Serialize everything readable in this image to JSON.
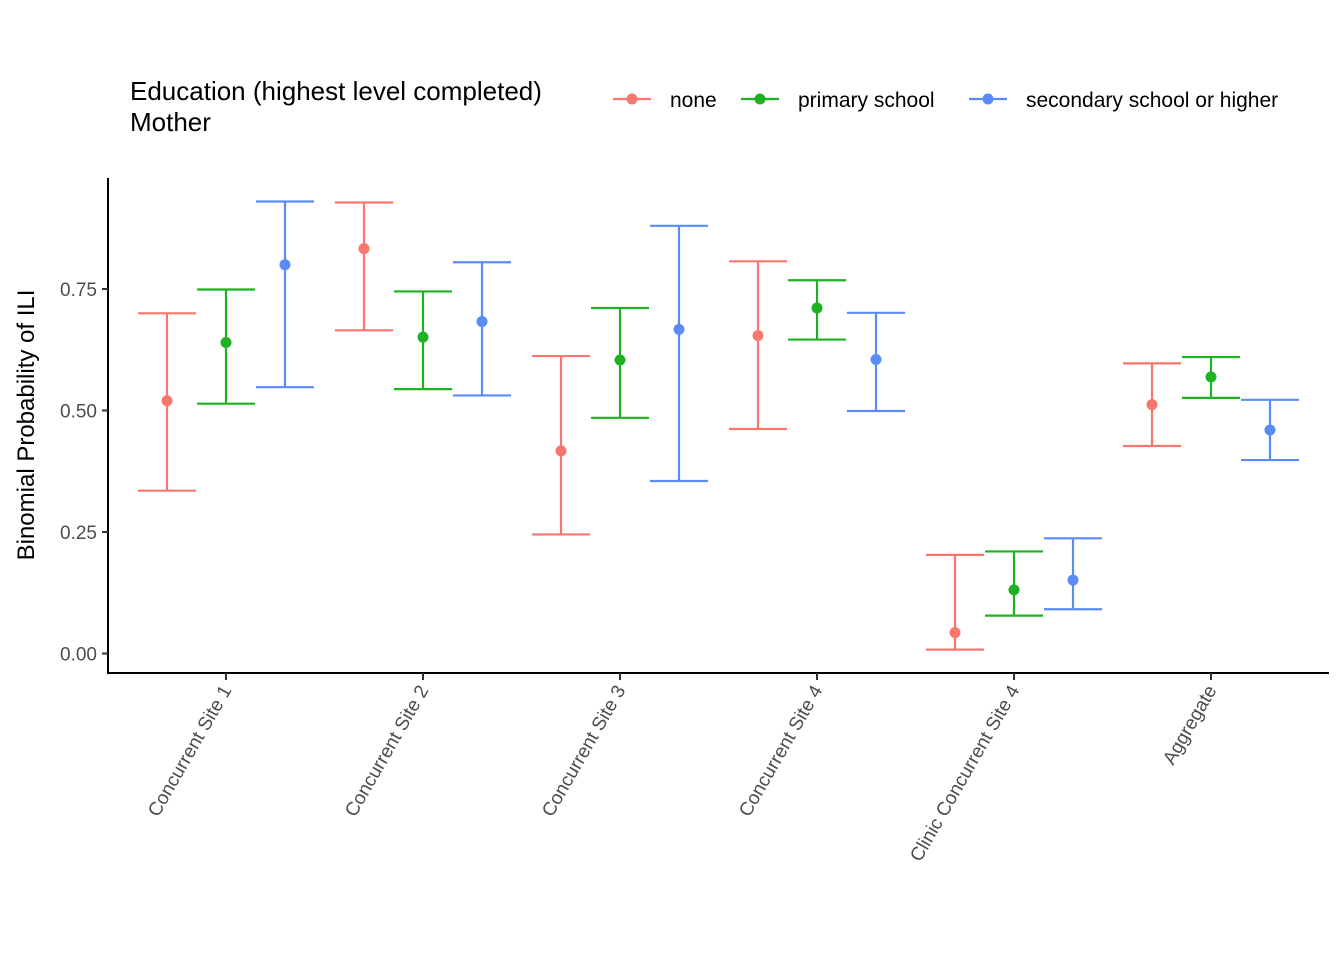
{
  "chart_data": {
    "type": "errorbar",
    "title": "",
    "xlabel": "",
    "ylabel": "Binomial Probability of ILI",
    "ylim": [
      -0.04,
      0.97
    ],
    "yticks": [
      "0.00",
      "0.25",
      "0.50",
      "0.75"
    ],
    "ytick_values": [
      0,
      0.25,
      0.5,
      0.75
    ],
    "grid": false,
    "legend": {
      "position": "top",
      "title_lines": [
        "Education (highest level completed)",
        "Mother"
      ]
    },
    "categories": [
      "Concurrent Site 1",
      "Concurrent Site 2",
      "Concurrent Site 3",
      "Concurrent Site 4",
      "Clinic Concurrent Site 4",
      "Aggregate"
    ],
    "series": [
      {
        "name": "none",
        "color": "#F8766D",
        "values": [
          0.52,
          0.833,
          0.417,
          0.654,
          0.043,
          0.512
        ],
        "lower": [
          0.335,
          0.665,
          0.245,
          0.462,
          0.008,
          0.427
        ],
        "upper": [
          0.7,
          0.928,
          0.612,
          0.807,
          0.203,
          0.597
        ]
      },
      {
        "name": "primary school",
        "color": "#1CB222",
        "values": [
          0.64,
          0.651,
          0.604,
          0.711,
          0.131,
          0.569
        ],
        "lower": [
          0.514,
          0.544,
          0.485,
          0.646,
          0.078,
          0.526
        ],
        "upper": [
          0.749,
          0.745,
          0.711,
          0.768,
          0.21,
          0.61
        ]
      },
      {
        "name": "secondary school or higher",
        "color": "#5A8CF8",
        "values": [
          0.8,
          0.683,
          0.667,
          0.605,
          0.151,
          0.46
        ],
        "lower": [
          0.548,
          0.531,
          0.355,
          0.499,
          0.091,
          0.398
        ],
        "upper": [
          0.93,
          0.805,
          0.88,
          0.701,
          0.237,
          0.522
        ]
      }
    ]
  }
}
